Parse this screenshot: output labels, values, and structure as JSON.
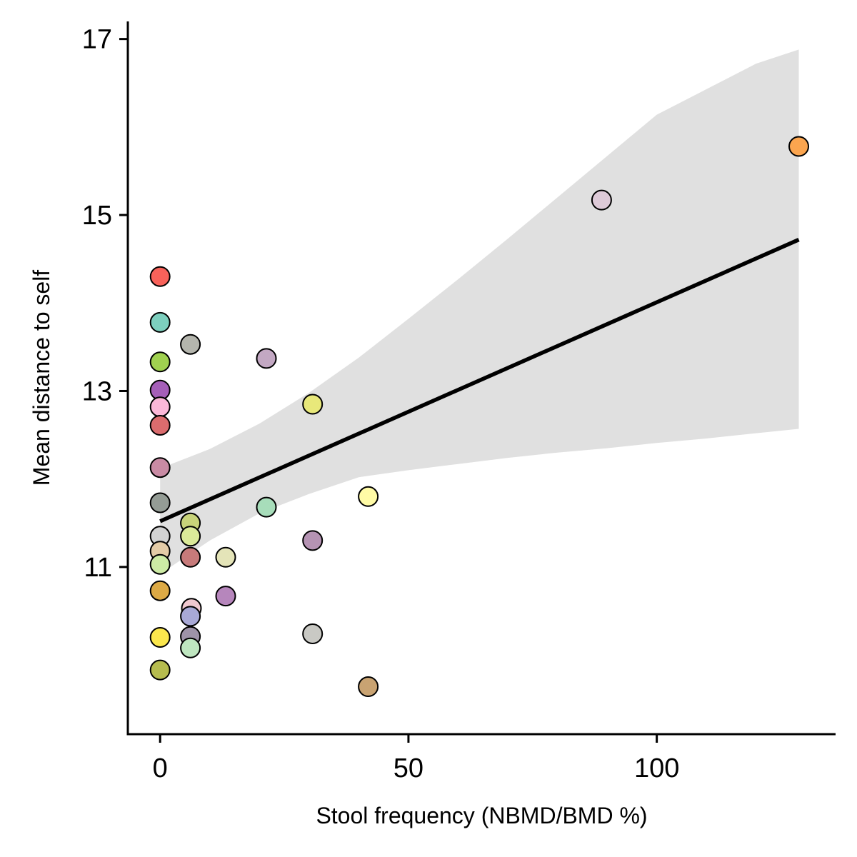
{
  "chart_data": {
    "type": "scatter",
    "xlabel": "Stool frequency (NBMD/BMD %)",
    "ylabel": "Mean distance to self",
    "xlim": [
      -6.5,
      136
    ],
    "ylim": [
      9.1,
      17.2
    ],
    "x_ticks": [
      0,
      50,
      100
    ],
    "y_ticks": [
      11,
      13,
      15,
      17
    ],
    "grid": false,
    "legend": "none",
    "points": [
      {
        "x": 0,
        "y": 14.3,
        "color": "#F8625A"
      },
      {
        "x": 0,
        "y": 13.78,
        "color": "#7DCFBE"
      },
      {
        "x": 0,
        "y": 13.33,
        "color": "#A0D150"
      },
      {
        "x": 0,
        "y": 13.01,
        "color": "#A55FB8"
      },
      {
        "x": 0,
        "y": 12.82,
        "color": "#FBB8D8"
      },
      {
        "x": 0,
        "y": 12.61,
        "color": "#DA6C6E"
      },
      {
        "x": 0,
        "y": 12.13,
        "color": "#C98BA4"
      },
      {
        "x": 0,
        "y": 11.73,
        "color": "#949C95"
      },
      {
        "x": 0,
        "y": 11.35,
        "color": "#D2D2D2"
      },
      {
        "x": 0,
        "y": 11.18,
        "color": "#E3CBA7"
      },
      {
        "x": 0,
        "y": 11.03,
        "color": "#CDEBA5"
      },
      {
        "x": 0,
        "y": 10.73,
        "color": "#DDAA45"
      },
      {
        "x": 0,
        "y": 10.2,
        "color": "#FBE74D"
      },
      {
        "x": 0,
        "y": 9.83,
        "color": "#B6BC4F"
      },
      {
        "x": 6.1,
        "y": 13.53,
        "color": "#B4B5AD"
      },
      {
        "x": 6.1,
        "y": 11.5,
        "color": "#C8D37A"
      },
      {
        "x": 6.1,
        "y": 11.35,
        "color": "#DBEA99"
      },
      {
        "x": 6.1,
        "y": 11.11,
        "color": "#C77A7A"
      },
      {
        "x": 6.3,
        "y": 10.53,
        "color": "#F0C8CF"
      },
      {
        "x": 6.1,
        "y": 10.44,
        "color": "#A9A9D6"
      },
      {
        "x": 6.1,
        "y": 10.21,
        "color": "#9E93A8"
      },
      {
        "x": 6.1,
        "y": 10.08,
        "color": "#BFE6C0"
      },
      {
        "x": 13.2,
        "y": 11.11,
        "color": "#E4E4B8"
      },
      {
        "x": 13.2,
        "y": 10.67,
        "color": "#B686BC"
      },
      {
        "x": 21.4,
        "y": 13.37,
        "color": "#C3A8C3"
      },
      {
        "x": 21.4,
        "y": 11.68,
        "color": "#A7DDBA"
      },
      {
        "x": 30.7,
        "y": 12.85,
        "color": "#E8E87A"
      },
      {
        "x": 30.7,
        "y": 11.3,
        "color": "#B593B3"
      },
      {
        "x": 30.7,
        "y": 10.24,
        "color": "#C9C9C4"
      },
      {
        "x": 41.9,
        "y": 11.8,
        "color": "#FFFBA6"
      },
      {
        "x": 41.9,
        "y": 9.64,
        "color": "#C9A372"
      },
      {
        "x": 88.9,
        "y": 15.17,
        "color": "#DECAD8"
      },
      {
        "x": 128.6,
        "y": 15.78,
        "color": "#FBA54F"
      }
    ],
    "fit_line": {
      "x": [
        0,
        128.6
      ],
      "y": [
        11.52,
        14.72
      ]
    },
    "confidence_band": {
      "x": [
        0,
        10,
        20,
        30,
        40,
        50,
        60,
        70,
        80,
        90,
        100,
        110,
        120,
        128.6
      ],
      "upper": [
        12.12,
        12.34,
        12.63,
        12.98,
        13.38,
        13.82,
        14.27,
        14.73,
        15.2,
        15.67,
        16.14,
        16.43,
        16.72,
        16.88
      ],
      "lower": [
        10.92,
        11.3,
        11.61,
        11.83,
        12.02,
        12.1,
        12.17,
        12.24,
        12.3,
        12.35,
        12.41,
        12.46,
        12.52,
        12.57
      ]
    }
  }
}
